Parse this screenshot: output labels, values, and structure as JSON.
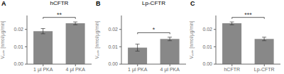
{
  "chart_data": [
    {
      "type": "bar",
      "title": "hCFTR",
      "annotations": [
        "A",
        "**"
      ],
      "ylabel": "Vₘₐₓ [nmol/μg/min]",
      "categories": [
        "1 μl PKA",
        "4 μl PKA"
      ],
      "values": [
        0.019,
        0.0235
      ],
      "errors": [
        0.0015,
        0.0008
      ],
      "color": "#888888",
      "ylim": [
        0.0,
        0.028
      ],
      "yticks": [
        {
          "value": 0.0,
          "label": "0.00"
        },
        {
          "value": 0.01,
          "label": "0.01"
        },
        {
          "value": 0.02,
          "label": "0.02"
        }
      ],
      "grid": false
    },
    {
      "type": "bar",
      "title": "Lp-CFTR",
      "annotations": [
        "B",
        "*"
      ],
      "ylabel": "Vₘₐₓ [nmol/μg/min]",
      "categories": [
        "1 μl PKA",
        "4 μl PKA"
      ],
      "values": [
        0.0095,
        0.0145
      ],
      "errors": [
        0.002,
        0.001
      ],
      "color": "#888888",
      "ylim": [
        0.0,
        0.028
      ],
      "yticks": [
        {
          "value": 0.0,
          "label": "0.00"
        },
        {
          "value": 0.01,
          "label": "0.01"
        },
        {
          "value": 0.02,
          "label": "0.02"
        }
      ],
      "grid": false
    },
    {
      "type": "bar",
      "annotations": [
        "C",
        "***"
      ],
      "ylabel": "Vₘₐₓ [nmol/μg/min]",
      "categories": [
        "hCFTR",
        "Lp-CFTR"
      ],
      "values": [
        0.0235,
        0.0145
      ],
      "errors": [
        0.0008,
        0.001
      ],
      "color": "#888888",
      "ylim": [
        0.0,
        0.028
      ],
      "yticks": [
        {
          "value": 0.0,
          "label": "0.00"
        },
        {
          "value": 0.01,
          "label": "0.01"
        },
        {
          "value": 0.02,
          "label": "0.02"
        }
      ],
      "grid": false
    }
  ]
}
